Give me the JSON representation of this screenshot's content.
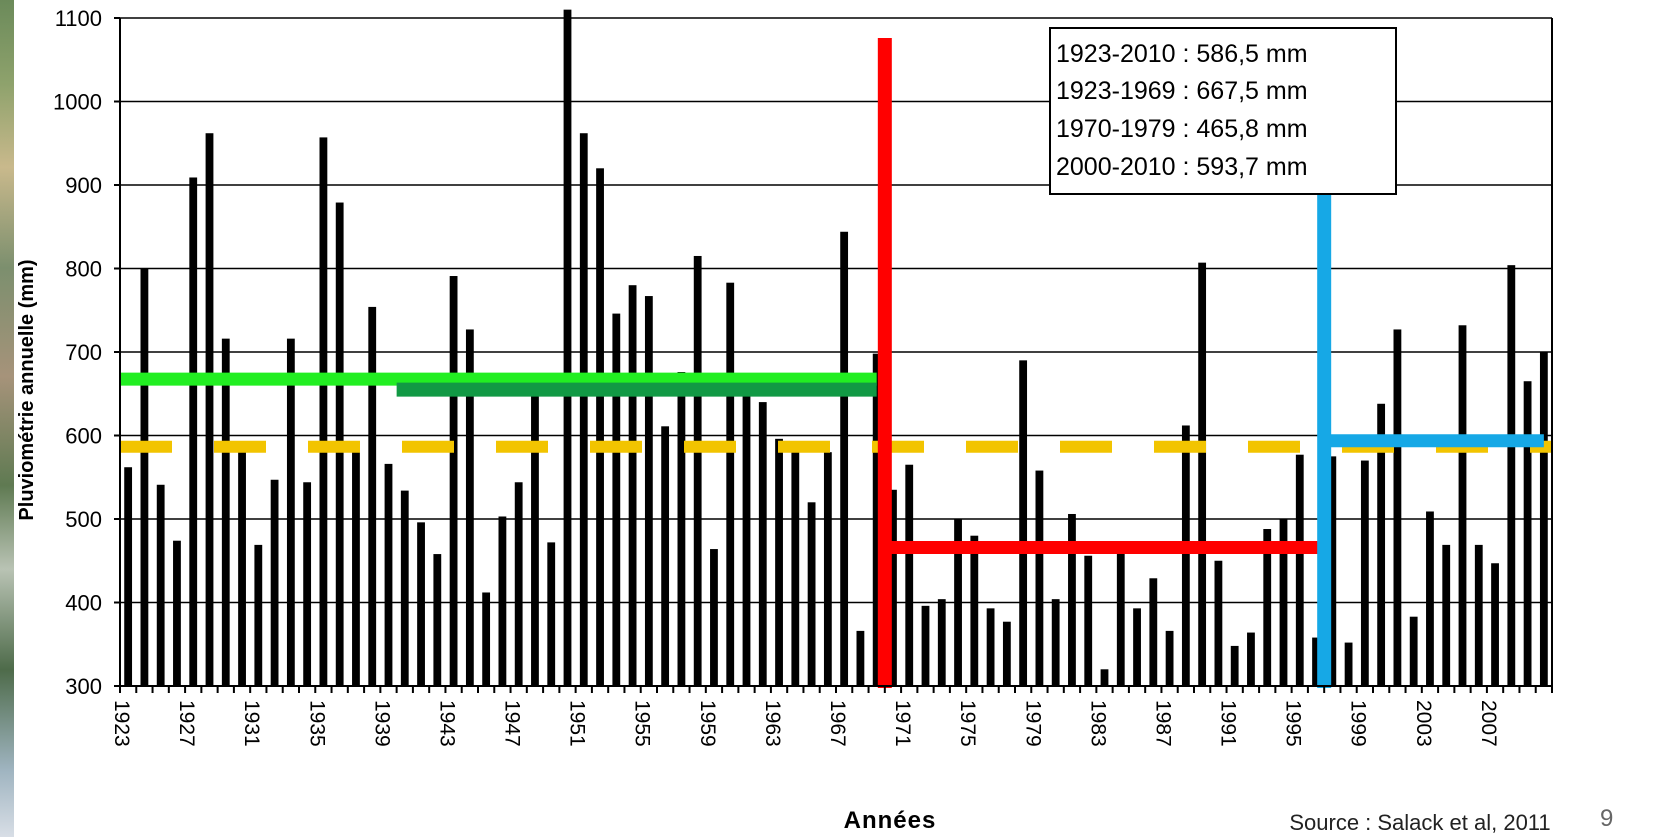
{
  "chart_data": {
    "type": "bar",
    "ylabel": "Pluviométrie annuelle (mm)",
    "xlabel": "Années",
    "ylim": [
      300,
      1100
    ],
    "yticks": [
      300,
      400,
      500,
      600,
      700,
      800,
      900,
      1000,
      1100
    ],
    "xtick_labels": [
      "1923",
      "1927",
      "1931",
      "1935",
      "1939",
      "1943",
      "1947",
      "1951",
      "1955",
      "1959",
      "1963",
      "1967",
      "1971",
      "1975",
      "1979",
      "1983",
      "1987",
      "1991",
      "1995",
      "1999",
      "2003",
      "2007"
    ],
    "grid": "horizontal",
    "years": [
      1923,
      1924,
      1925,
      1926,
      1927,
      1928,
      1929,
      1930,
      1931,
      1932,
      1933,
      1934,
      1935,
      1936,
      1937,
      1938,
      1939,
      1940,
      1941,
      1942,
      1943,
      1944,
      1945,
      1946,
      1947,
      1948,
      1949,
      1950,
      1951,
      1952,
      1953,
      1954,
      1955,
      1956,
      1957,
      1958,
      1959,
      1960,
      1961,
      1962,
      1963,
      1964,
      1965,
      1966,
      1967,
      1968,
      1969,
      1970,
      1971,
      1972,
      1973,
      1974,
      1975,
      1976,
      1977,
      1978,
      1979,
      1980,
      1981,
      1982,
      1983,
      1984,
      1985,
      1986,
      1987,
      1988,
      1989,
      1990,
      1991,
      1992,
      1993,
      1994,
      1995,
      1996,
      1997,
      1998,
      1999,
      2000,
      2001,
      2002,
      2003,
      2004,
      2005,
      2006,
      2007,
      2008,
      2009,
      2010
    ],
    "values": [
      562,
      800,
      541,
      474,
      909,
      962,
      716,
      590,
      469,
      547,
      716,
      544,
      957,
      879,
      580,
      754,
      566,
      534,
      496,
      458,
      791,
      727,
      412,
      503,
      544,
      650,
      472,
      1110,
      962,
      920,
      746,
      780,
      767,
      611,
      676,
      815,
      464,
      783,
      650,
      640,
      596,
      580,
      520,
      580,
      844,
      366,
      698,
      535,
      565,
      396,
      404,
      500,
      480,
      393,
      377,
      690,
      558,
      404,
      506,
      456,
      320,
      472,
      393,
      429,
      366,
      612,
      807,
      450,
      348,
      364,
      488,
      500,
      577,
      358,
      575,
      352,
      570,
      638,
      727,
      383,
      509,
      469,
      732,
      469,
      447,
      804,
      665,
      700
    ],
    "segments": [
      {
        "label_period": "1923-1969",
        "from": 1923,
        "to": 1969.5,
        "value": 667.5,
        "color": "#22ee22"
      },
      {
        "label_period": "1940-1969",
        "from": 1940,
        "to": 1969.5,
        "value": 655,
        "color": "#119944"
      },
      {
        "label_period": "1970-1979",
        "from": 1970,
        "to": 1997,
        "value": 465.8,
        "color": "#ff0000"
      },
      {
        "label_period": "2000-2010",
        "from": 1997,
        "to": 2010.5,
        "value": 593.7,
        "color": "#16a8e6"
      }
    ],
    "mean_line": {
      "value": 586.5,
      "color": "#f2c400",
      "style": "dashed"
    },
    "breaks": [
      {
        "year": 1970,
        "color": "#ff0000"
      },
      {
        "year": 1997,
        "color": "#16a8e6"
      }
    ],
    "annotations": [
      "1923-2010 : 586,5 mm",
      "1923-1969 : 667,5 mm",
      "1970-1979 : 465,8 mm",
      "2000-2010 : 593,7 mm"
    ],
    "source": "Source : Salack et al, 2011",
    "page_number": "9"
  }
}
